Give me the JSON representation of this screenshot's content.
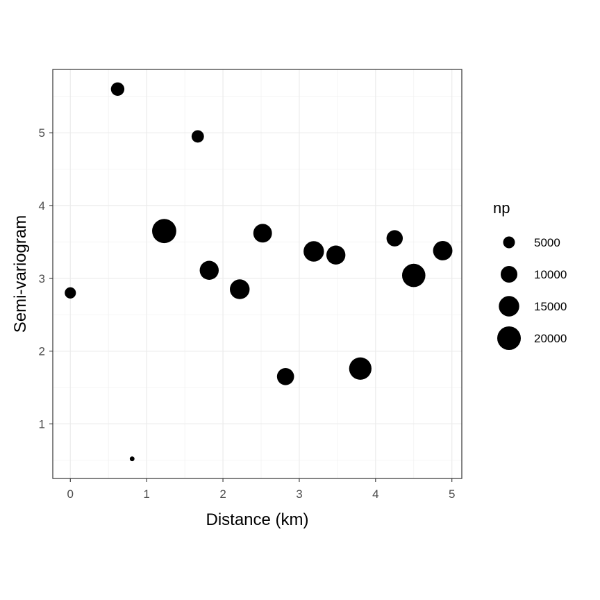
{
  "chart_data": {
    "type": "scatter",
    "xlabel": "Distance (km)",
    "ylabel": "Semi-variogram",
    "xlim": [
      -0.23,
      5.13
    ],
    "ylim": [
      0.25,
      5.87
    ],
    "x_ticks": [
      0,
      1,
      2,
      3,
      4,
      5
    ],
    "y_ticks": [
      1,
      2,
      3,
      4,
      5
    ],
    "grid": true,
    "legend_position": "right",
    "point_color": "#000000",
    "points": [
      {
        "x": 0.0,
        "y": 2.8,
        "np": 4500
      },
      {
        "x": 0.62,
        "y": 5.6,
        "np": 6500
      },
      {
        "x": 0.81,
        "y": 0.52,
        "np": 800
      },
      {
        "x": 1.23,
        "y": 3.65,
        "np": 21000
      },
      {
        "x": 1.67,
        "y": 4.95,
        "np": 5500
      },
      {
        "x": 1.82,
        "y": 3.11,
        "np": 13000
      },
      {
        "x": 2.22,
        "y": 2.85,
        "np": 14000
      },
      {
        "x": 2.52,
        "y": 3.62,
        "np": 12500
      },
      {
        "x": 2.82,
        "y": 1.65,
        "np": 10500
      },
      {
        "x": 3.19,
        "y": 3.37,
        "np": 15000
      },
      {
        "x": 3.48,
        "y": 3.32,
        "np": 13000
      },
      {
        "x": 3.8,
        "y": 1.76,
        "np": 18000
      },
      {
        "x": 4.25,
        "y": 3.55,
        "np": 9500
      },
      {
        "x": 4.5,
        "y": 3.04,
        "np": 19500
      },
      {
        "x": 4.88,
        "y": 3.38,
        "np": 13500
      }
    ],
    "legend": {
      "title": "np",
      "entries": [
        {
          "label": "5000",
          "np": 5000
        },
        {
          "label": "10000",
          "np": 10000
        },
        {
          "label": "15000",
          "np": 15000
        },
        {
          "label": "20000",
          "np": 20000
        }
      ]
    }
  }
}
